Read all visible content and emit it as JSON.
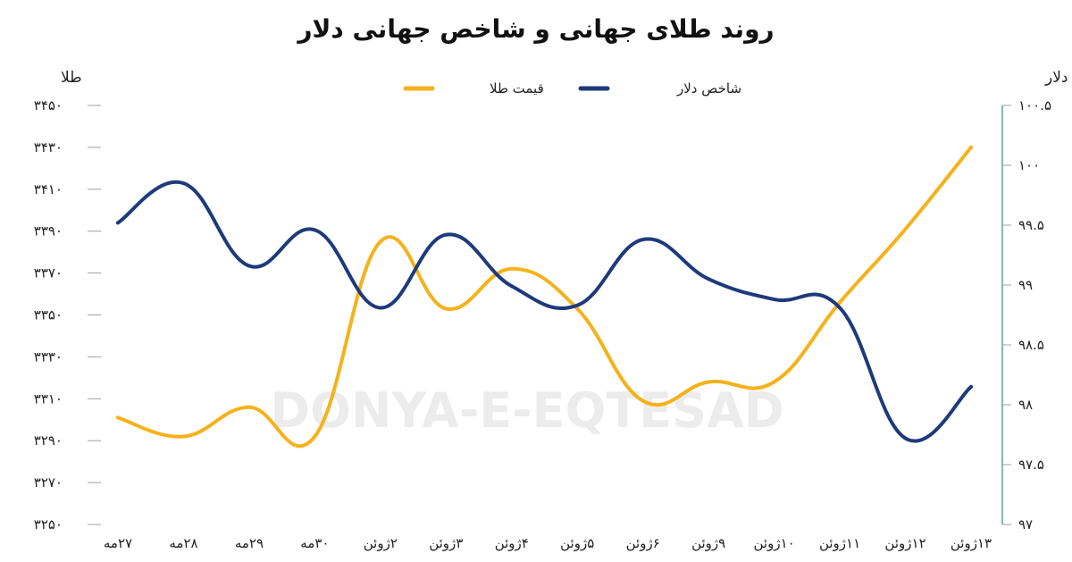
{
  "chart_data": {
    "type": "line",
    "title": "روند طلای جهانی و شاخص جهانی دلار",
    "watermark": "DONYA-E-EQTESAD",
    "categories": [
      "۲۷مه",
      "۲۸مه",
      "۲۹مه",
      "۳۰مه",
      "۲ژوئن",
      "۳ژوئن",
      "۴ژوئن",
      "۵ژوئن",
      "۶ژوئن",
      "۹ژوئن",
      "۱۰ژوئن",
      "۱۱ژوئن",
      "۱۲ژوئن",
      "۱۳ژوئن"
    ],
    "left_axis": {
      "label": "طلا",
      "ylim": [
        3250,
        3450
      ],
      "tick_values": [
        3250,
        3270,
        3290,
        3310,
        3330,
        3350,
        3370,
        3390,
        3410,
        3430,
        3450
      ],
      "tick_labels": [
        "۳۲۵۰",
        "۳۲۷۰",
        "۳۲۹۰",
        "۳۳۱۰",
        "۳۳۳۰",
        "۳۳۵۰",
        "۳۳۷۰",
        "۳۳۹۰",
        "۳۴۱۰",
        "۳۴۳۰",
        "۳۴۵۰"
      ]
    },
    "right_axis": {
      "label": "دلار",
      "ylim": [
        97,
        100.5
      ],
      "tick_values": [
        97,
        97.5,
        98,
        98.5,
        99,
        99.5,
        100,
        100.5
      ],
      "tick_labels": [
        "۹۷",
        "۹۷.۵",
        "۹۸",
        "۹۸.۵",
        "۹۹",
        "۹۹.۵",
        "۱۰۰",
        "۱۰۰.۵"
      ]
    },
    "series": [
      {
        "name": "قیمت طلا",
        "axis": "left",
        "color": "#f5b21b",
        "values": [
          3301,
          3292,
          3306,
          3292,
          3385,
          3353,
          3372,
          3353,
          3309,
          3318,
          3318,
          3356,
          3391,
          3430
        ]
      },
      {
        "name": "شاخص دلار",
        "axis": "right",
        "color": "#1e3a7b",
        "values": [
          99.52,
          99.85,
          99.16,
          99.46,
          98.81,
          99.42,
          98.99,
          98.83,
          99.38,
          99.05,
          98.88,
          98.81,
          97.72,
          98.15
        ]
      }
    ],
    "legend_position": "top-center",
    "grid": false
  }
}
